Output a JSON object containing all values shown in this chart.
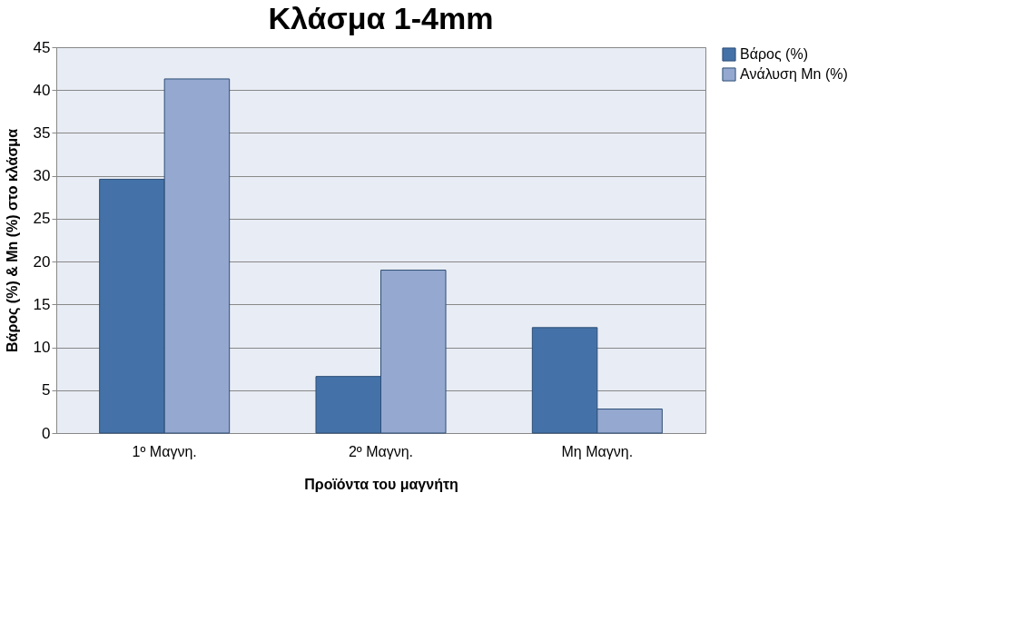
{
  "chart_data": {
    "type": "bar",
    "title": "Κλάσμα 1-4mm",
    "xlabel": "Προϊόντα του μαγνήτη",
    "ylabel": "Βάρος (%) & Mn (%) στο κλάσμα",
    "categories": [
      "1º Μαγνη.",
      "2º Μαγνη.",
      "Μη Μαγνη."
    ],
    "series": [
      {
        "name": "Βάρος (%)",
        "color": "#4472a8",
        "values": [
          29.6,
          6.6,
          12.3
        ]
      },
      {
        "name": "Ανάλυση Mn (%)",
        "color": "#95a9d0",
        "values": [
          41.3,
          19.0,
          2.8
        ]
      }
    ],
    "ylim": [
      0,
      45
    ],
    "yticks": [
      0,
      5,
      10,
      15,
      20,
      25,
      30,
      35,
      40,
      45
    ],
    "grid": "y",
    "legend": "right"
  }
}
